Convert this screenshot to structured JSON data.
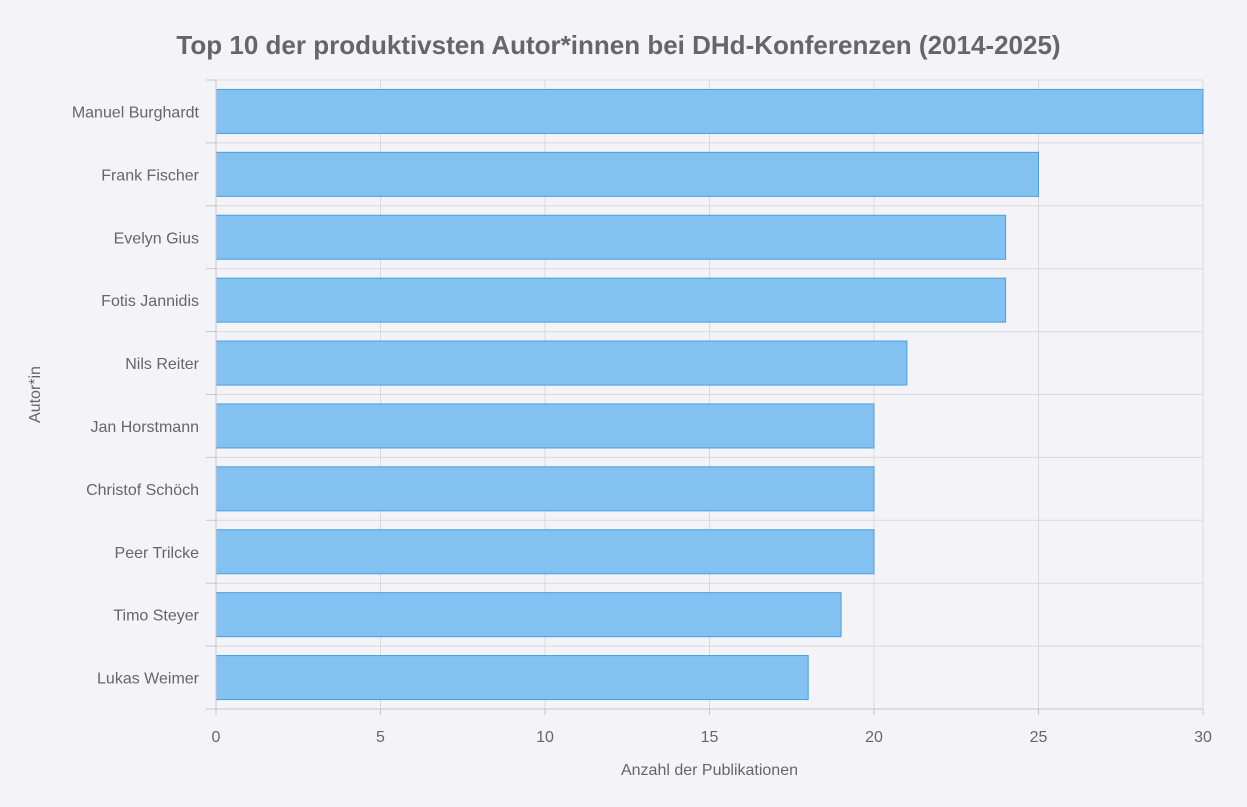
{
  "chart_data": {
    "type": "bar",
    "orientation": "horizontal",
    "title": "Top 10 der produktivsten Autor*innen bei DHd-Konferenzen (2014-2025)",
    "xlabel": "Anzahl der Publikationen",
    "ylabel": "Autor*in",
    "categories": [
      "Manuel Burghardt",
      "Frank Fischer",
      "Evelyn Gius",
      "Fotis Jannidis",
      "Nils Reiter",
      "Jan Horstmann",
      "Christof Schöch",
      "Peer Trilcke",
      "Timo Steyer",
      "Lukas Weimer"
    ],
    "values": [
      30,
      25,
      24,
      24,
      21,
      20,
      20,
      20,
      19,
      18
    ],
    "xlim": [
      0,
      30
    ],
    "xticks": [
      0,
      5,
      10,
      15,
      20,
      25,
      30
    ],
    "grid": true,
    "bar_fill": "#82c1f0",
    "bar_stroke": "#4a9fdc",
    "text_color": "#666666",
    "background": "#f4f4f8"
  }
}
